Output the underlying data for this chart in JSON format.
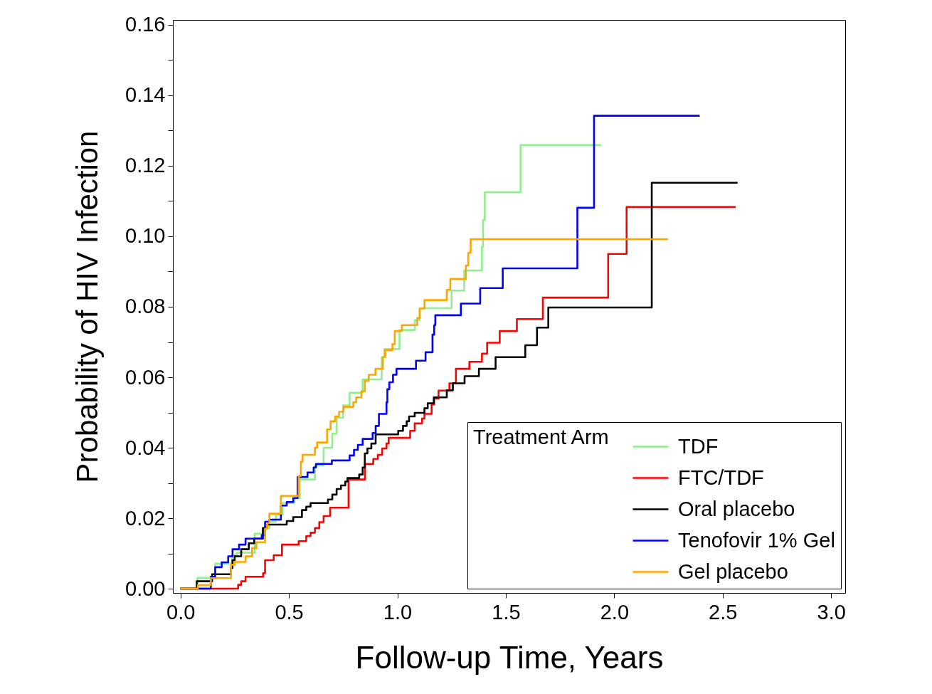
{
  "chart_data": {
    "type": "step",
    "xlabel": "Follow-up Time, Years",
    "ylabel": "Probability of HIV Infection",
    "legend_title": "Treatment Arm",
    "legend": "bottom right",
    "xlim": [
      -0.035,
      3.065
    ],
    "ylim": [
      -0.0012,
      0.1614
    ],
    "xticks": [
      {
        "value": 0,
        "label": "0.0"
      },
      {
        "value": 0.5,
        "label": "0.5"
      },
      {
        "value": 1,
        "label": "1.0"
      },
      {
        "value": 1.5,
        "label": "1.5"
      },
      {
        "value": 2,
        "label": "2.0"
      },
      {
        "value": 2.5,
        "label": "2.5"
      },
      {
        "value": 3,
        "label": "3.0"
      }
    ],
    "yticks": [
      {
        "value": 0,
        "label": "0.00"
      },
      {
        "value": 0.01,
        "label": null
      },
      {
        "value": 0.02,
        "label": "0.02"
      },
      {
        "value": 0.03,
        "label": null
      },
      {
        "value": 0.04,
        "label": "0.04"
      },
      {
        "value": 0.05,
        "label": null
      },
      {
        "value": 0.06,
        "label": "0.06"
      },
      {
        "value": 0.07,
        "label": null
      },
      {
        "value": 0.08,
        "label": "0.08"
      },
      {
        "value": 0.09,
        "label": null
      },
      {
        "value": 0.1,
        "label": "0.10"
      },
      {
        "value": 0.11,
        "label": null
      },
      {
        "value": 0.12,
        "label": "0.12"
      },
      {
        "value": 0.13,
        "label": null
      },
      {
        "value": 0.14,
        "label": "0.14"
      },
      {
        "value": 0.15,
        "label": null
      },
      {
        "value": 0.16,
        "label": "0.16"
      }
    ],
    "series": [
      {
        "name": "TDF",
        "color": "#90ee90",
        "x": [
          0,
          0.079,
          0.161,
          0.238,
          0.26,
          0.342,
          0.38,
          0.41,
          0.44,
          0.471,
          0.525,
          0.55,
          0.62,
          0.66,
          0.7,
          0.72,
          0.75,
          0.78,
          0.84,
          0.928,
          0.94,
          1.01,
          1.08,
          1.103,
          1.25,
          1.308,
          1.39,
          1.395,
          1.403,
          1.568,
          1.94
        ],
        "values": [
          0,
          0.0031,
          0.0071,
          0.0095,
          0.0102,
          0.0156,
          0.0172,
          0.019,
          0.021,
          0.0243,
          0.0257,
          0.031,
          0.035,
          0.04,
          0.044,
          0.0485,
          0.052,
          0.0556,
          0.0594,
          0.0657,
          0.068,
          0.0734,
          0.0762,
          0.0796,
          0.0846,
          0.0903,
          0.097,
          0.1046,
          0.1125,
          0.1259,
          0.1259
        ]
      },
      {
        "name": "FTC/TDF",
        "color": "#ff0000",
        "x": [
          0,
          0.266,
          0.28,
          0.3,
          0.381,
          0.39,
          0.43,
          0.468,
          0.545,
          0.58,
          0.6,
          0.62,
          0.64,
          0.66,
          0.69,
          0.775,
          0.851,
          0.889,
          0.91,
          0.93,
          0.95,
          0.96,
          1.059,
          1.08,
          1.114,
          1.125,
          1.158,
          1.17,
          1.19,
          1.24,
          1.27,
          1.332,
          1.39,
          1.414,
          1.472,
          1.551,
          1.671,
          1.972,
          2.057,
          2.56
        ],
        "values": [
          0,
          0.0011,
          0.0021,
          0.0034,
          0.0044,
          0.0081,
          0.0095,
          0.0125,
          0.0135,
          0.0149,
          0.0159,
          0.0172,
          0.0189,
          0.0206,
          0.023,
          0.031,
          0.0354,
          0.0368,
          0.038,
          0.0398,
          0.0412,
          0.0428,
          0.0448,
          0.0469,
          0.0483,
          0.0496,
          0.0523,
          0.054,
          0.0562,
          0.0583,
          0.0624,
          0.0644,
          0.0667,
          0.0698,
          0.0731,
          0.0765,
          0.0826,
          0.095,
          0.1083,
          0.1083
        ]
      },
      {
        "name": "Oral placebo",
        "color": "#000000",
        "x": [
          0,
          0.075,
          0.146,
          0.233,
          0.24,
          0.25,
          0.28,
          0.315,
          0.34,
          0.38,
          0.4,
          0.49,
          0.52,
          0.56,
          0.58,
          0.6,
          0.68,
          0.7,
          0.72,
          0.74,
          0.76,
          0.77,
          0.824,
          0.84,
          0.85,
          0.862,
          0.88,
          0.9,
          1.004,
          1.026,
          1.043,
          1.054,
          1.08,
          1.125,
          1.14,
          1.168,
          1.228,
          1.256,
          1.31,
          1.376,
          1.453,
          1.59,
          1.644,
          1.696,
          2.173,
          2.569
        ],
        "values": [
          0,
          0.0021,
          0.0041,
          0.0059,
          0.0081,
          0.0092,
          0.0112,
          0.0129,
          0.0142,
          0.0172,
          0.0182,
          0.0192,
          0.0203,
          0.0223,
          0.0233,
          0.0243,
          0.0253,
          0.0267,
          0.0283,
          0.0293,
          0.0304,
          0.0314,
          0.0324,
          0.0344,
          0.0384,
          0.0398,
          0.0412,
          0.0438,
          0.0448,
          0.0462,
          0.0475,
          0.0489,
          0.0499,
          0.0512,
          0.0526,
          0.0543,
          0.0563,
          0.0583,
          0.0603,
          0.0624,
          0.0657,
          0.0691,
          0.0741,
          0.0798,
          0.1152,
          0.1152
        ]
      },
      {
        "name": "Tenofovir 1% Gel",
        "color": "#0000ff",
        "x": [
          0,
          0.14,
          0.16,
          0.19,
          0.22,
          0.24,
          0.27,
          0.3,
          0.375,
          0.39,
          0.41,
          0.463,
          0.49,
          0.52,
          0.54,
          0.586,
          0.614,
          0.625,
          0.698,
          0.78,
          0.8,
          0.818,
          0.84,
          0.886,
          0.9,
          0.915,
          0.95,
          0.954,
          0.963,
          0.98,
          0.996,
          1.086,
          1.13,
          1.162,
          1.17,
          1.175,
          1.293,
          1.382,
          1.486,
          1.83,
          1.907,
          2.394
        ],
        "values": [
          0,
          0.0034,
          0.0061,
          0.0075,
          0.0092,
          0.0112,
          0.0125,
          0.0142,
          0.0152,
          0.019,
          0.0196,
          0.0236,
          0.0246,
          0.0257,
          0.0317,
          0.033,
          0.0344,
          0.0354,
          0.0364,
          0.0378,
          0.0394,
          0.0408,
          0.0425,
          0.0442,
          0.0462,
          0.0496,
          0.0529,
          0.0566,
          0.0586,
          0.0607,
          0.0624,
          0.0647,
          0.0671,
          0.0721,
          0.0748,
          0.0776,
          0.0809,
          0.0853,
          0.0909,
          0.1081,
          0.1342,
          0.1342
        ]
      },
      {
        "name": "Gel placebo",
        "color": "#ffa500",
        "x": [
          0,
          0.08,
          0.14,
          0.233,
          0.25,
          0.3,
          0.33,
          0.35,
          0.39,
          0.4,
          0.41,
          0.463,
          0.545,
          0.555,
          0.563,
          0.62,
          0.63,
          0.676,
          0.692,
          0.714,
          0.731,
          0.752,
          0.797,
          0.81,
          0.834,
          0.85,
          0.868,
          0.899,
          0.933,
          0.944,
          0.977,
          0.988,
          1.021,
          1.092,
          1.103,
          1.125,
          1.228,
          1.244,
          1.316,
          1.327,
          1.338,
          2.248
        ],
        "values": [
          0,
          0.001,
          0.003,
          0.0068,
          0.0076,
          0.0092,
          0.0115,
          0.0132,
          0.017,
          0.0186,
          0.0213,
          0.0263,
          0.032,
          0.036,
          0.038,
          0.04,
          0.0415,
          0.0452,
          0.0475,
          0.0489,
          0.0502,
          0.0516,
          0.0529,
          0.0543,
          0.056,
          0.059,
          0.0607,
          0.0624,
          0.0657,
          0.0677,
          0.0694,
          0.0731,
          0.0748,
          0.0768,
          0.0795,
          0.0819,
          0.0848,
          0.0879,
          0.0917,
          0.0953,
          0.0992,
          0.0992
        ]
      }
    ]
  }
}
